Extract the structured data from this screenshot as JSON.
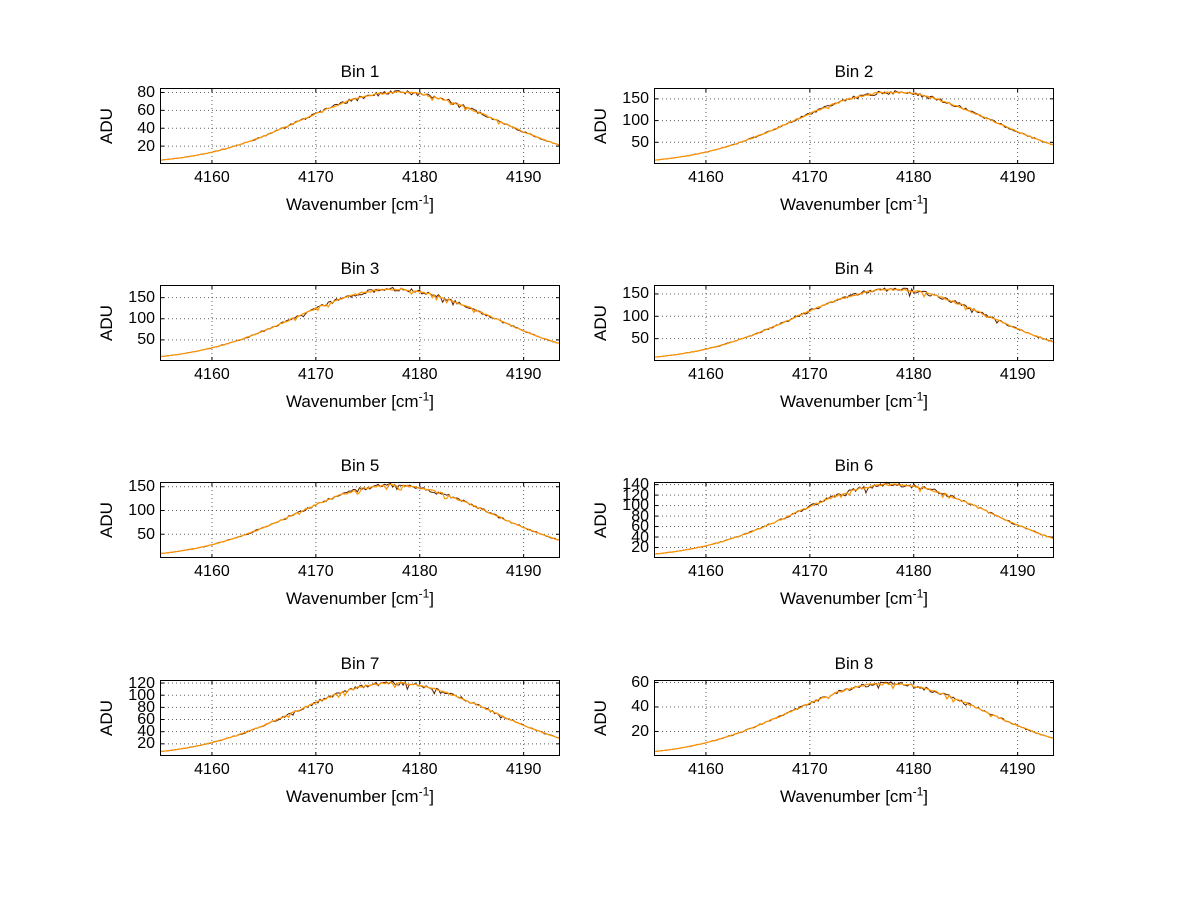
{
  "figure": {
    "background": "#ffffff"
  },
  "labels": {
    "ylabel": "ADU",
    "xlabel_base": "Wavenumber [cm",
    "xlabel_sup": "-1",
    "xlabel_close": "]"
  },
  "colors": {
    "curve": "#ff9500",
    "curve_dark": "#5a2000",
    "grid": "#606060",
    "axis": "#000000",
    "text": "#000000"
  },
  "chart_data": [
    {
      "type": "line",
      "title": "Bin 1",
      "xlabel": "Wavenumber [cm⁻¹]",
      "ylabel": "ADU",
      "xlim": [
        4155,
        4193.5
      ],
      "x_ticks": [
        4160,
        4170,
        4180,
        4190
      ],
      "ylim": [
        0,
        85
      ],
      "y_ticks": [
        20,
        40,
        60,
        80
      ],
      "gaussian": {
        "amplitude": 80,
        "center": 4178,
        "sigma": 9.5
      },
      "x_samples": [
        4156,
        4160,
        4165,
        4170,
        4175,
        4178,
        4180,
        4185,
        4190,
        4193
      ],
      "y_samples": [
        5.5,
        13.3,
        31.4,
        56.1,
        76.1,
        80,
        78.2,
        61.0,
        36.0,
        23.0
      ],
      "grid": true,
      "legend": false
    },
    {
      "type": "line",
      "title": "Bin 2",
      "xlabel": "Wavenumber [cm⁻¹]",
      "ylabel": "ADU",
      "xlim": [
        4155,
        4193.5
      ],
      "x_ticks": [
        4160,
        4170,
        4180,
        4190
      ],
      "ylim": [
        0,
        175
      ],
      "y_ticks": [
        50,
        100,
        150
      ],
      "gaussian": {
        "amplitude": 165,
        "center": 4178,
        "sigma": 9.5
      },
      "x_samples": [
        4156,
        4160,
        4165,
        4170,
        4175,
        4178,
        4180,
        4185,
        4190,
        4193
      ],
      "y_samples": [
        11.3,
        27.4,
        64.7,
        115.7,
        157.0,
        165,
        161.4,
        125.7,
        74.3,
        47.4
      ],
      "grid": true,
      "legend": false
    },
    {
      "type": "line",
      "title": "Bin 3",
      "xlabel": "Wavenumber [cm⁻¹]",
      "ylabel": "ADU",
      "xlim": [
        4155,
        4193.5
      ],
      "x_ticks": [
        4160,
        4170,
        4180,
        4190
      ],
      "ylim": [
        0,
        180
      ],
      "y_ticks": [
        50,
        100,
        150
      ],
      "gaussian": {
        "amplitude": 170,
        "center": 4177.5,
        "sigma": 9.5
      },
      "x_samples": [
        4156,
        4160,
        4165,
        4170,
        4175,
        4178,
        4180,
        4185,
        4190,
        4193
      ],
      "y_samples": [
        11.6,
        28.2,
        66.6,
        119.3,
        161.7,
        170,
        166.3,
        129.5,
        76.5,
        48.9
      ],
      "grid": true,
      "legend": false
    },
    {
      "type": "line",
      "title": "Bin 4",
      "xlabel": "Wavenumber [cm⁻¹]",
      "ylabel": "ADU",
      "xlim": [
        4155,
        4193.5
      ],
      "x_ticks": [
        4160,
        4170,
        4180,
        4190
      ],
      "ylim": [
        0,
        170
      ],
      "y_ticks": [
        50,
        100,
        150
      ],
      "gaussian": {
        "amplitude": 160,
        "center": 4178,
        "sigma": 9.5
      },
      "x_samples": [
        4156,
        4160,
        4165,
        4170,
        4175,
        4178,
        4180,
        4185,
        4190,
        4193
      ],
      "y_samples": [
        11.0,
        26.6,
        62.7,
        112.2,
        152.2,
        160,
        156.5,
        121.9,
        72.0,
        46.0
      ],
      "grid": true,
      "legend": false
    },
    {
      "type": "line",
      "title": "Bin 5",
      "xlabel": "Wavenumber [cm⁻¹]",
      "ylabel": "ADU",
      "xlim": [
        4155,
        4193.5
      ],
      "x_ticks": [
        4160,
        4170,
        4180,
        4190
      ],
      "ylim": [
        0,
        160
      ],
      "y_ticks": [
        50,
        100,
        150
      ],
      "gaussian": {
        "amplitude": 153,
        "center": 4177.5,
        "sigma": 9.5
      },
      "x_samples": [
        4156,
        4160,
        4165,
        4170,
        4175,
        4178,
        4180,
        4185,
        4190,
        4193
      ],
      "y_samples": [
        10.5,
        25.4,
        60.0,
        107.3,
        145.6,
        153,
        149.6,
        116.6,
        68.9,
        44.0
      ],
      "grid": true,
      "legend": false
    },
    {
      "type": "line",
      "title": "Bin 6",
      "xlabel": "Wavenumber [cm⁻¹]",
      "ylabel": "ADU",
      "xlim": [
        4155,
        4193.5
      ],
      "x_ticks": [
        4160,
        4170,
        4180,
        4190
      ],
      "ylim": [
        0,
        145
      ],
      "y_ticks": [
        20,
        40,
        60,
        80,
        100,
        120,
        140
      ],
      "gaussian": {
        "amplitude": 140,
        "center": 4178,
        "sigma": 9.5
      },
      "x_samples": [
        4156,
        4160,
        4165,
        4170,
        4175,
        4178,
        4180,
        4185,
        4190,
        4193
      ],
      "y_samples": [
        9.6,
        23.2,
        54.9,
        98.2,
        133.2,
        140,
        136.9,
        106.7,
        63.0,
        40.3
      ],
      "grid": true,
      "legend": false
    },
    {
      "type": "line",
      "title": "Bin 7",
      "xlabel": "Wavenumber [cm⁻¹]",
      "ylabel": "ADU",
      "xlim": [
        4155,
        4193.5
      ],
      "x_ticks": [
        4160,
        4170,
        4180,
        4190
      ],
      "ylim": [
        0,
        125
      ],
      "y_ticks": [
        20,
        40,
        60,
        80,
        100,
        120
      ],
      "gaussian": {
        "amplitude": 120,
        "center": 4177.5,
        "sigma": 9.5
      },
      "x_samples": [
        4156,
        4160,
        4165,
        4170,
        4175,
        4178,
        4180,
        4185,
        4190,
        4193
      ],
      "y_samples": [
        8.2,
        19.9,
        47.0,
        84.2,
        114.2,
        120,
        117.4,
        91.4,
        54.0,
        34.5
      ],
      "grid": true,
      "legend": false
    },
    {
      "type": "line",
      "title": "Bin 8",
      "xlabel": "Wavenumber [cm⁻¹]",
      "ylabel": "ADU",
      "xlim": [
        4155,
        4193.5
      ],
      "x_ticks": [
        4160,
        4170,
        4180,
        4190
      ],
      "ylim": [
        0,
        62
      ],
      "y_ticks": [
        20,
        40,
        60
      ],
      "gaussian": {
        "amplitude": 59,
        "center": 4177.5,
        "sigma": 9.5
      },
      "x_samples": [
        4156,
        4160,
        4165,
        4170,
        4175,
        4178,
        4180,
        4185,
        4190,
        4193
      ],
      "y_samples": [
        4.0,
        9.8,
        23.1,
        41.4,
        56.1,
        59,
        57.7,
        45.0,
        26.6,
        17.0
      ],
      "grid": true,
      "legend": false
    }
  ]
}
